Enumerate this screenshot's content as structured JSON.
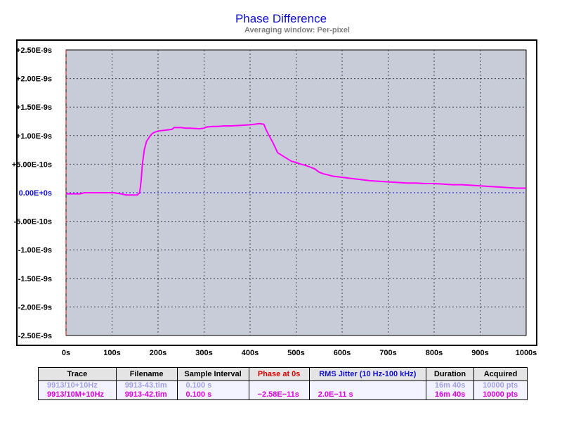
{
  "chart_data": {
    "type": "line",
    "title": "Phase Difference",
    "subtitle": "Averaging window: Per-pixel",
    "xlabel": "",
    "ylabel": "",
    "xlim": [
      0,
      1000
    ],
    "ylim": [
      -2.5e-09,
      2.5e-09
    ],
    "x_ticks": [
      "0s",
      "100s",
      "200s",
      "300s",
      "400s",
      "500s",
      "600s",
      "700s",
      "800s",
      "900s",
      "1000s"
    ],
    "x_tick_values": [
      0,
      100,
      200,
      300,
      400,
      500,
      600,
      700,
      800,
      900,
      1000
    ],
    "y_ticks": [
      "+2.50E-9s",
      "+2.00E-9s",
      "+1.50E-9s",
      "+1.00E-9s",
      "+5.00E-10s",
      "0.00E+0s",
      "-5.00E-10s",
      "-1.00E-9s",
      "-1.50E-9s",
      "-2.00E-9s",
      "-2.50E-9s"
    ],
    "y_tick_values": [
      2.5e-09,
      2e-09,
      1.5e-09,
      1e-09,
      5e-10,
      0,
      -5e-10,
      -1e-09,
      -1.5e-09,
      -2e-09,
      -2.5e-09
    ],
    "grid": true,
    "plot_background": "#c8ccd8",
    "zero_line_color": "#1010d0",
    "cursor_color": "#e00000",
    "series": [
      {
        "color": "#ff00ff",
        "x": [
          0,
          30,
          40,
          100,
          105,
          110,
          120,
          130,
          140,
          150,
          155,
          160,
          163,
          166,
          170,
          175,
          180,
          185,
          190,
          200,
          220,
          230,
          235,
          240,
          250,
          260,
          270,
          290,
          300,
          305,
          320,
          330,
          345,
          360,
          380,
          400,
          410,
          420,
          430,
          435,
          440,
          450,
          460,
          470,
          480,
          490,
          500,
          510,
          520,
          530,
          540,
          550,
          560,
          570,
          580,
          590,
          600,
          610,
          620,
          630,
          640,
          650,
          660,
          680,
          700,
          720,
          740,
          760,
          780,
          800,
          820,
          840,
          860,
          880,
          900,
          920,
          940,
          960,
          980,
          1000
        ],
        "y": [
          -2e-11,
          -2e-11,
          0,
          0,
          0,
          -1e-11,
          -2e-11,
          -4e-11,
          -4e-11,
          -4e-11,
          -4e-11,
          0.0,
          2e-10,
          5e-10,
          7.5e-10,
          9e-10,
          9.6e-10,
          1.02e-09,
          1.05e-09,
          1.08e-09,
          1.1e-09,
          1.11e-09,
          1.14e-09,
          1.14e-09,
          1.14e-09,
          1.13e-09,
          1.13e-09,
          1.12e-09,
          1.13e-09,
          1.15e-09,
          1.16e-09,
          1.16e-09,
          1.17e-09,
          1.17e-09,
          1.18e-09,
          1.19e-09,
          1.2e-09,
          1.21e-09,
          1.2e-09,
          1.1e-09,
          1.02e-09,
          8.7e-10,
          7e-10,
          6.5e-10,
          6e-10,
          5.5e-10,
          5.3e-10,
          5e-10,
          4.8e-10,
          4.5e-10,
          4.2e-10,
          3.6e-10,
          3.3e-10,
          3.1e-10,
          2.9e-10,
          2.8e-10,
          2.7e-10,
          2.6e-10,
          2.5e-10,
          2.4e-10,
          2.3e-10,
          2.2e-10,
          2.1e-10,
          2e-10,
          1.9e-10,
          1.8e-10,
          1.7e-10,
          1.7e-10,
          1.6e-10,
          1.6e-10,
          1.5e-10,
          1.4e-10,
          1.4e-10,
          1.3e-10,
          1.2e-10,
          1.1e-10,
          1e-10,
          9e-11,
          8e-11,
          8e-11
        ]
      }
    ]
  },
  "legend_table": {
    "headers": [
      "Trace",
      "Filename",
      "Sample Interval",
      "Phase at 0s",
      "RMS Jitter (10 Hz-100 kHz)",
      "Duration",
      "Acquired"
    ],
    "header_colors": [
      "#000000",
      "#000000",
      "#000000",
      "#e00000",
      "#1010d0",
      "#000000",
      "#000000"
    ],
    "rows": [
      {
        "color": "#a0a0e8",
        "cells": [
          "9913/10+10Hz",
          "9913-43.tim",
          "0.100 s",
          "",
          "",
          "16m 40s",
          "10000 pts"
        ]
      },
      {
        "color": "#e000e0",
        "cells": [
          "9913/10M+10Hz",
          "9913-42.tim",
          "0.100 s",
          "−2.58E−11s",
          "2.0E−11 s",
          "16m 40s",
          "10000 pts"
        ]
      }
    ]
  }
}
